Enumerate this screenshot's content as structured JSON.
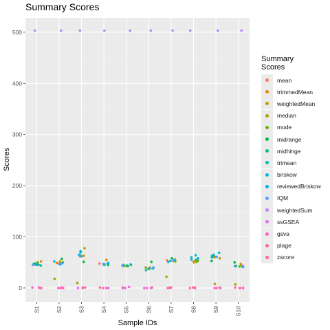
{
  "chart_data": {
    "type": "scatter",
    "title": "Summary Scores",
    "xlabel": "Sample IDs",
    "ylabel": "Scores",
    "legend_title": "Summary\nScores",
    "legend_position": "right",
    "grid": true,
    "categories": [
      "S1",
      "S2",
      "S3",
      "S4",
      "S5",
      "S6",
      "S7",
      "S8",
      "S9",
      "S10"
    ],
    "yticks": [
      0,
      100,
      200,
      300,
      400,
      500
    ],
    "ylim": [
      -27,
      528
    ],
    "series": [
      {
        "name": "mean",
        "color": "#F8766D",
        "values": [
          45,
          48,
          62,
          48,
          44,
          40,
          54,
          55,
          60,
          43
        ]
      },
      {
        "name": "trimmedMean",
        "color": "#E58700",
        "values": [
          46,
          49,
          63,
          46,
          43,
          39,
          53,
          52,
          61,
          44
        ]
      },
      {
        "name": "weightedMean",
        "color": "#C99800",
        "values": [
          52,
          52,
          78,
          55,
          44,
          38,
          56,
          50,
          58,
          47
        ]
      },
      {
        "name": "median",
        "color": "#A3A500",
        "values": [
          46,
          18,
          10,
          48,
          45,
          40,
          22,
          53,
          8,
          7
        ]
      },
      {
        "name": "mode",
        "color": "#6BB100",
        "values": [
          50,
          50,
          65,
          45,
          43,
          37,
          52,
          51,
          62,
          42
        ]
      },
      {
        "name": "midrange",
        "color": "#00BA38",
        "values": [
          48,
          57,
          51,
          45,
          43,
          51,
          58,
          56,
          53,
          50
        ]
      },
      {
        "name": "midhinge",
        "color": "#00BF7D",
        "values": [
          45,
          49,
          62,
          48,
          44,
          40,
          54,
          55,
          60,
          43
        ]
      },
      {
        "name": "trimean",
        "color": "#00C0AF",
        "values": [
          44,
          47,
          70,
          46,
          45,
          35,
          51,
          60,
          65,
          41
        ]
      },
      {
        "name": "briskow",
        "color": "#00BCD8",
        "values": [
          47,
          52,
          72,
          47,
          45,
          39,
          55,
          64,
          69,
          43
        ]
      },
      {
        "name": "reviewedBriskow",
        "color": "#00B0F6",
        "values": [
          46,
          46,
          65,
          49,
          46,
          38,
          53,
          58,
          63,
          42
        ]
      },
      {
        "name": "IQM",
        "color": "#619CFF",
        "values": [
          45,
          48,
          63,
          47,
          44,
          39,
          54,
          55,
          61,
          43
        ]
      },
      {
        "name": "weightedSum",
        "color": "#B983FF",
        "values": [
          503,
          503,
          503,
          503,
          503,
          503,
          503,
          503,
          503,
          503
        ]
      },
      {
        "name": "ssGSEA",
        "color": "#E76BF3",
        "values": [
          0,
          0,
          0,
          0,
          0,
          0,
          0,
          0,
          0,
          0
        ]
      },
      {
        "name": "gsva",
        "color": "#FD61D1",
        "values": [
          1,
          1,
          1,
          0,
          2,
          0,
          1,
          1,
          0,
          0
        ]
      },
      {
        "name": "plage",
        "color": "#FF67A4",
        "values": [
          0,
          0,
          0,
          0,
          0,
          0,
          0,
          0,
          0,
          0
        ]
      },
      {
        "name": "zscore",
        "color": "#FF6C91",
        "values": [
          1,
          0,
          1,
          1,
          1,
          1,
          1,
          1,
          1,
          1
        ]
      }
    ]
  }
}
